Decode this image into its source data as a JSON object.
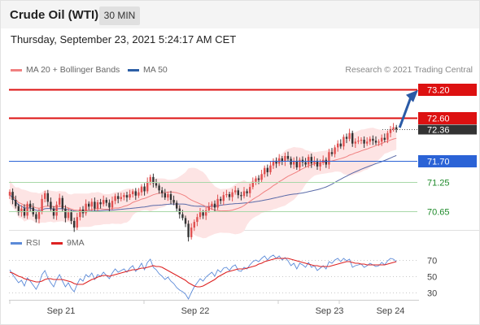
{
  "header": {
    "title": "Crude Oil (WTI)",
    "timeframe": "30 MIN",
    "datetime": "Thursday, September 23, 2021 5:24:17 AM CET",
    "credit": "Research © 2021 Trading Central"
  },
  "colors": {
    "resistance": "#dd1111",
    "current_price": "#333333",
    "pivot": "#2b63d6",
    "support": "#1e8a2a",
    "ma20": "#f08080",
    "ma50": "#5a6aa8",
    "band_fill": "#fde4e4",
    "candle_up": "#e05050",
    "candle_down": "#333333",
    "arrow": "#2a5aa6",
    "rsi": "#5b8ad8",
    "rsi_ma": "#dd2222"
  },
  "chart_data": [
    {
      "type": "candlestick",
      "legend": [
        {
          "label": "MA 20 + Bollinger Bands",
          "color": "#f08080"
        },
        {
          "label": "MA 50",
          "color": "#2d5fa6"
        }
      ],
      "ylim": [
        70.2,
        73.45
      ],
      "x_ticks": [
        "Sep 21",
        "Sep 22",
        "Sep 23",
        "Sep 24"
      ],
      "levels": [
        {
          "value": 73.2,
          "label": "73.20",
          "kind": "resistance"
        },
        {
          "value": 72.6,
          "label": "72.60",
          "kind": "resistance"
        },
        {
          "value": 72.36,
          "label": "72.36",
          "kind": "current"
        },
        {
          "value": 71.7,
          "label": "71.70",
          "kind": "pivot"
        },
        {
          "value": 71.25,
          "label": "71.25",
          "kind": "support"
        },
        {
          "value": 70.65,
          "label": "70.65",
          "kind": "support"
        }
      ],
      "close": [
        71.05,
        70.88,
        70.75,
        70.62,
        70.7,
        70.55,
        70.8,
        70.72,
        70.58,
        70.48,
        70.63,
        70.9,
        71.02,
        70.84,
        70.7,
        70.55,
        70.78,
        70.92,
        70.7,
        70.5,
        70.62,
        70.44,
        70.3,
        70.52,
        70.68,
        70.6,
        70.8,
        70.74,
        70.84,
        70.7,
        70.83,
        70.79,
        70.88,
        70.82,
        70.72,
        70.86,
        70.96,
        70.9,
        70.94,
        70.98,
        70.93,
        71.0,
        71.06,
        70.97,
        71.04,
        71.16,
        71.06,
        71.26,
        71.36,
        71.23,
        71.18,
        71.08,
        71.02,
        70.93,
        71.0,
        70.88,
        70.82,
        70.7,
        70.58,
        70.5,
        70.38,
        70.1,
        70.3,
        70.42,
        70.52,
        70.62,
        70.55,
        70.66,
        70.74,
        70.8,
        70.72,
        70.9,
        70.86,
        70.98,
        71.0,
        70.94,
        71.04,
        71.08,
        70.98,
        70.96,
        71.06,
        71.02,
        71.15,
        71.26,
        71.33,
        71.3,
        71.42,
        71.55,
        71.46,
        71.6,
        71.7,
        71.64,
        71.75,
        71.68,
        71.8,
        71.74,
        71.62,
        71.7,
        71.56,
        71.72,
        71.67,
        71.62,
        71.78,
        71.64,
        71.7,
        71.58,
        71.66,
        71.72,
        71.62,
        71.88,
        71.84,
        71.98,
        72.06,
        72.0,
        72.2,
        72.16,
        72.28,
        72.06,
        72.1,
        72.12,
        72.14,
        72.06,
        72.1,
        72.16,
        72.12,
        72.08,
        72.1,
        72.18,
        72.14,
        72.28,
        72.36,
        72.4,
        72.36
      ]
    },
    {
      "type": "line",
      "legend": [
        {
          "label": "RSI",
          "color": "#5b8ad8"
        },
        {
          "label": "9MA",
          "color": "#dd2222"
        }
      ],
      "ylim": [
        15,
        85
      ],
      "y_ticks": [
        70,
        50,
        30
      ],
      "x_ticks": [
        "Sep 21",
        "Sep 22",
        "Sep 23",
        "Sep 24"
      ],
      "series": [
        {
          "name": "RSI",
          "values": [
            58,
            52,
            47,
            42,
            45,
            38,
            48,
            44,
            39,
            34,
            41,
            52,
            57,
            48,
            42,
            37,
            46,
            52,
            44,
            37,
            42,
            35,
            31,
            40,
            47,
            44,
            52,
            49,
            54,
            46,
            52,
            50,
            55,
            51,
            47,
            54,
            59,
            55,
            57,
            59,
            55,
            60,
            63,
            56,
            60,
            66,
            58,
            67,
            71,
            61,
            58,
            53,
            50,
            46,
            49,
            44,
            41,
            36,
            33,
            31,
            28,
            22,
            30,
            37,
            42,
            47,
            44,
            49,
            52,
            55,
            50,
            58,
            55,
            60,
            61,
            57,
            62,
            64,
            57,
            56,
            61,
            59,
            64,
            68,
            70,
            68,
            72,
            75,
            70,
            74,
            76,
            72,
            75,
            70,
            73,
            69,
            63,
            66,
            59,
            66,
            64,
            61,
            67,
            61,
            63,
            57,
            60,
            63,
            59,
            68,
            66,
            70,
            72,
            68,
            72,
            69,
            71,
            61,
            63,
            64,
            65,
            61,
            63,
            66,
            64,
            62,
            63,
            67,
            64,
            69,
            72,
            71,
            68
          ]
        },
        {
          "name": "9MA",
          "values": [
            55,
            54,
            52,
            50,
            49,
            47,
            46,
            45,
            44,
            43,
            43,
            44,
            46,
            47,
            47,
            46,
            46,
            46,
            46,
            45,
            44,
            43,
            41,
            40,
            40,
            40,
            42,
            44,
            46,
            47,
            49,
            50,
            51,
            51,
            50,
            51,
            52,
            53,
            54,
            55,
            56,
            57,
            58,
            58,
            59,
            60,
            60,
            61,
            62,
            63,
            62,
            62,
            61,
            59,
            57,
            55,
            53,
            51,
            49,
            47,
            45,
            42,
            40,
            38,
            37,
            37,
            38,
            40,
            42,
            44,
            46,
            49,
            51,
            53,
            55,
            56,
            57,
            58,
            59,
            59,
            59,
            60,
            61,
            62,
            63,
            65,
            66,
            68,
            69,
            70,
            71,
            72,
            72,
            72,
            72,
            72,
            71,
            70,
            69,
            68,
            67,
            66,
            65,
            64,
            63,
            63,
            62,
            62,
            62,
            62,
            63,
            64,
            65,
            66,
            67,
            68,
            68,
            67,
            66,
            66,
            65,
            65,
            64,
            64,
            64,
            64,
            64,
            64,
            64,
            65,
            66,
            67,
            68
          ]
        }
      ]
    }
  ]
}
